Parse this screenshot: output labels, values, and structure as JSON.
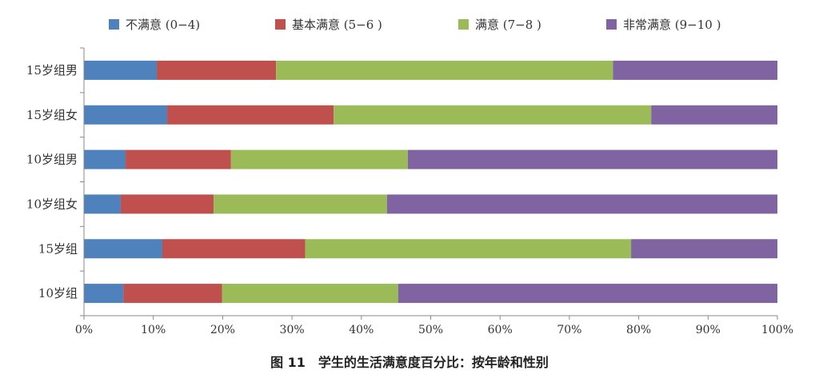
{
  "colors": {
    "s1": "#4F81BD",
    "s2": "#C0504D",
    "s3": "#9BBB59",
    "s4": "#8064A2"
  },
  "caption": "图 11　学生的生活满意度百分比：按年龄和性别",
  "chart_data": {
    "type": "bar",
    "orientation": "horizontal",
    "stacked": true,
    "categories": [
      "15岁组男",
      "15岁组女",
      "10岁组男",
      "10岁组女",
      "15岁组",
      "10岁组"
    ],
    "series": [
      {
        "name": "不满意 (0−4)",
        "values": [
          10.5,
          12.0,
          6.0,
          5.3,
          11.3,
          5.7
        ]
      },
      {
        "name": "基本满意 (5−6 )",
        "values": [
          17.2,
          24.0,
          15.2,
          13.4,
          20.6,
          14.2
        ]
      },
      {
        "name": "满意 (7−8 )",
        "values": [
          48.6,
          45.8,
          25.5,
          25.0,
          47.0,
          25.4
        ]
      },
      {
        "name": "非常满意 (9−10 )",
        "values": [
          23.7,
          18.2,
          53.3,
          56.3,
          21.1,
          54.7
        ]
      }
    ],
    "x_ticks": [
      "0%",
      "10%",
      "20%",
      "30%",
      "40%",
      "50%",
      "60%",
      "70%",
      "80%",
      "90%",
      "100%"
    ],
    "xlim": [
      0,
      100
    ],
    "grid": false,
    "legend_position": "top"
  }
}
